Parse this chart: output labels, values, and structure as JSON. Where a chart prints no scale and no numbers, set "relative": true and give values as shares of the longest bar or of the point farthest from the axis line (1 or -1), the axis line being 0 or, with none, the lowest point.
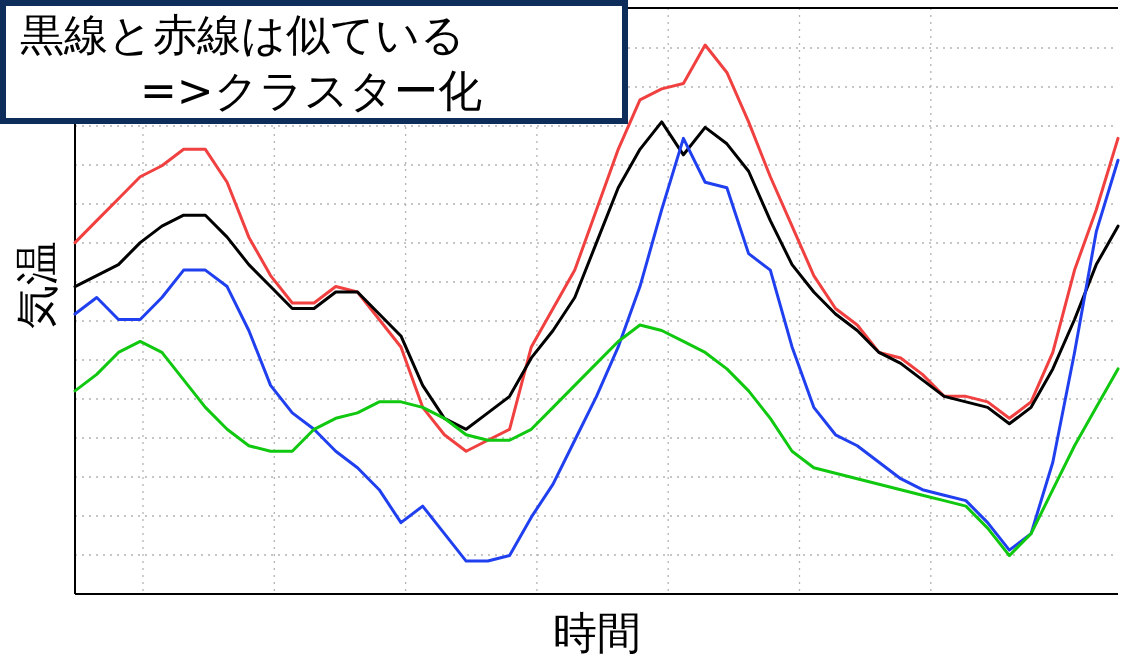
{
  "chart_data": {
    "type": "line",
    "relative": true,
    "grid": true,
    "xlabel": "時間",
    "ylabel": "気温",
    "annotations": [
      "黒線と赤線は似ている\n=>クラスター化"
    ],
    "categories": [
      null,
      null,
      null,
      null,
      null,
      null,
      null,
      null,
      null,
      null,
      null,
      null,
      null,
      null,
      null,
      null,
      null,
      null,
      null,
      null,
      null,
      null,
      null,
      null,
      null,
      null,
      null,
      null,
      null,
      null,
      null,
      null,
      null,
      null,
      null,
      null,
      null,
      null,
      null,
      null,
      null,
      null,
      null,
      null,
      null,
      null,
      null,
      null,
      null
    ],
    "series": [
      {
        "color": "#f04040",
        "values": [
          0.64,
          0.68,
          0.72,
          0.76,
          0.78,
          0.81,
          0.81,
          0.75,
          0.65,
          0.58,
          0.53,
          0.53,
          0.56,
          0.55,
          0.5,
          0.45,
          0.34,
          0.29,
          0.26,
          0.28,
          0.3,
          0.45,
          0.52,
          0.59,
          0.7,
          0.81,
          0.9,
          0.92,
          0.93,
          1.0,
          0.95,
          0.86,
          0.76,
          0.67,
          0.58,
          0.52,
          0.49,
          0.44,
          0.43,
          0.4,
          0.36,
          0.36,
          0.35,
          0.32,
          0.35,
          0.44,
          0.59,
          0.7,
          0.83
        ]
      },
      {
        "color": "#000000",
        "values": [
          0.56,
          0.58,
          0.6,
          0.64,
          0.67,
          0.69,
          0.69,
          0.65,
          0.6,
          0.56,
          0.52,
          0.52,
          0.55,
          0.55,
          0.51,
          0.47,
          0.38,
          0.32,
          0.3,
          0.33,
          0.36,
          0.43,
          0.48,
          0.54,
          0.64,
          0.74,
          0.81,
          0.86,
          0.8,
          0.85,
          0.82,
          0.77,
          0.68,
          0.6,
          0.55,
          0.51,
          0.48,
          0.44,
          0.42,
          0.39,
          0.36,
          0.35,
          0.34,
          0.31,
          0.34,
          0.41,
          0.5,
          0.6,
          0.67
        ]
      },
      {
        "color": "#2040f0",
        "values": [
          0.51,
          0.54,
          0.5,
          0.5,
          0.54,
          0.59,
          0.59,
          0.56,
          0.48,
          0.38,
          0.33,
          0.3,
          0.26,
          0.23,
          0.19,
          0.13,
          0.16,
          0.11,
          0.06,
          0.06,
          0.07,
          0.14,
          0.2,
          0.28,
          0.36,
          0.45,
          0.56,
          0.7,
          0.83,
          0.75,
          0.74,
          0.62,
          0.59,
          0.45,
          0.34,
          0.29,
          0.27,
          0.24,
          0.21,
          0.19,
          0.18,
          0.17,
          0.13,
          0.08,
          0.11,
          0.24,
          0.44,
          0.66,
          0.79
        ]
      },
      {
        "color": "#10c810",
        "values": [
          0.37,
          0.4,
          0.44,
          0.46,
          0.44,
          0.39,
          0.34,
          0.3,
          0.27,
          0.26,
          0.26,
          0.3,
          0.32,
          0.33,
          0.35,
          0.35,
          0.34,
          0.32,
          0.29,
          0.28,
          0.28,
          0.3,
          0.34,
          0.38,
          0.42,
          0.46,
          0.49,
          0.48,
          0.46,
          0.44,
          0.41,
          0.37,
          0.32,
          0.26,
          0.23,
          0.22,
          0.21,
          0.2,
          0.19,
          0.18,
          0.17,
          0.16,
          0.12,
          0.07,
          0.11,
          0.19,
          0.27,
          0.34,
          0.41
        ]
      }
    ]
  }
}
